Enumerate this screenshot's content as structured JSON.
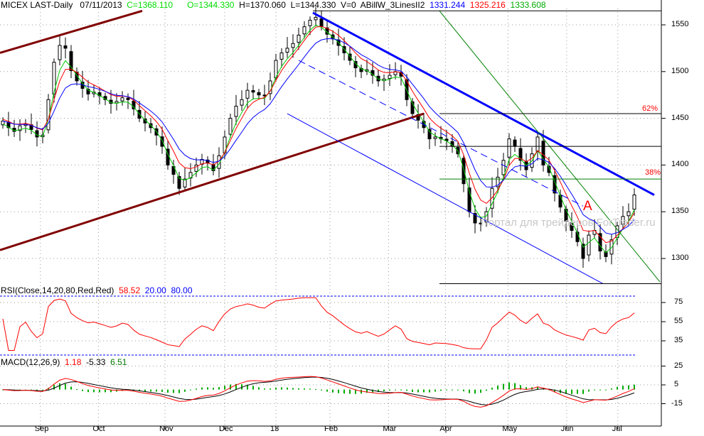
{
  "header": {
    "symbol": "MICEX LAST-Daily",
    "date": "07/11/2013",
    "close": "C=1368.110",
    "open": "O=1344.330",
    "high": "H=1370.060",
    "low": "L=1344.330",
    "volume": "V=0",
    "indicator": "ABillW_3LinesII2",
    "ind_values": [
      "1331.244",
      "1325.216",
      "1333.608"
    ]
  },
  "rsi_header": {
    "label": "RSI(Close,14,20,80,Red,Red)",
    "value": "58.52",
    "low": "20.00",
    "high": "80.00"
  },
  "macd_header": {
    "label": "MACD(12,26,9)",
    "macd": "1.18",
    "signal": "-5.33",
    "hist": "6.51"
  },
  "watermark": "Портал для трейдеров ForTrader.ru",
  "annotations": {
    "fib62": "62%",
    "fib38": "38%",
    "wave": "A"
  },
  "colors": {
    "green": "#00cc00",
    "red": "#ff0000",
    "blue": "#0000ff",
    "brown": "#800000",
    "axis": "#000000"
  },
  "chart_data": {
    "type": "candlestick",
    "x_ticks": [
      "Sep",
      "Oct",
      "Nov",
      "Dec",
      "13",
      "Feb",
      "Mar",
      "Apr",
      "May",
      "Jun",
      "Jul"
    ],
    "x_tick_index": [
      6.6,
      16.8,
      28.5,
      39,
      48,
      57.5,
      67.8,
      77.8,
      88.8,
      99.1,
      108.1
    ],
    "price_ticks": [
      1300,
      1350,
      1400,
      1450,
      1500,
      1550
    ],
    "price_labels": [
      "1300",
      "1350",
      "1400",
      "1450",
      "1500",
      "1550"
    ],
    "price_range": [
      1262,
      1575
    ],
    "closes": [
      1447,
      1440,
      1436,
      1442,
      1444,
      1438,
      1430,
      1432,
      1470,
      1510,
      1528,
      1525,
      1501,
      1490,
      1482,
      1476,
      1478,
      1474,
      1470,
      1466,
      1468,
      1472,
      1470,
      1460,
      1450,
      1445,
      1440,
      1432,
      1420,
      1400,
      1390,
      1375,
      1385,
      1392,
      1400,
      1406,
      1402,
      1394,
      1410,
      1430,
      1450,
      1463,
      1470,
      1480,
      1478,
      1475,
      1474,
      1490,
      1512,
      1520,
      1525,
      1530,
      1539,
      1548,
      1555,
      1558,
      1548,
      1540,
      1535,
      1528,
      1520,
      1512,
      1504,
      1500,
      1502,
      1496,
      1490,
      1492,
      1496,
      1500,
      1495,
      1470,
      1455,
      1448,
      1440,
      1428,
      1430,
      1428,
      1426,
      1420,
      1412,
      1380,
      1350,
      1338,
      1337,
      1350,
      1375,
      1387,
      1405,
      1428,
      1420,
      1405,
      1395,
      1412,
      1430,
      1400,
      1392,
      1370,
      1355,
      1340,
      1330,
      1318,
      1300,
      1325,
      1330,
      1308,
      1302,
      1320,
      1335,
      1345,
      1350,
      1368
    ],
    "rsi_ticks": [
      35,
      55,
      75
    ],
    "rsi_labels": [
      "35",
      "55",
      "75"
    ],
    "rsi_levels": [
      20,
      80
    ],
    "macd_ticks": [
      -15,
      5,
      25
    ],
    "macd_labels": [
      "-15",
      "5",
      "25"
    ],
    "trendlines": [
      {
        "name": "brown-channel-lower",
        "color": "#800000",
        "width": 3,
        "from": [
          -0.5,
          1309
        ],
        "to": [
          74,
          1455
        ]
      },
      {
        "name": "brown-channel-upper",
        "color": "#800000",
        "width": 3,
        "from": [
          -0.5,
          1520
        ],
        "to": [
          24.5,
          1565
        ]
      },
      {
        "name": "blue-resistance",
        "color": "#0000ff",
        "width": 3,
        "from": [
          54.5,
          1563
        ],
        "to": [
          114.5,
          1368
        ]
      },
      {
        "name": "blue-dashed-mid",
        "color": "#0000ff",
        "width": 1,
        "dash": true,
        "from": [
          52,
          1512
        ],
        "to": [
          102,
          1356
        ]
      },
      {
        "name": "blue-channel-lower",
        "color": "#0000ff",
        "width": 1,
        "from": [
          50,
          1455
        ],
        "to": [
          105.5,
          1273
        ]
      },
      {
        "name": "green-fan",
        "color": "#008000",
        "width": 1,
        "from": [
          76.75,
          1565
        ],
        "to": [
          115.5,
          1275
        ]
      },
      {
        "name": "hline-top",
        "color": "#000000",
        "width": 1,
        "from": [
          54.5,
          1565
        ],
        "to": [
          115.75,
          1565
        ]
      },
      {
        "name": "hline-62",
        "color": "#000000",
        "width": 1,
        "from": [
          76.75,
          1455
        ],
        "to": [
          115.75,
          1455
        ]
      },
      {
        "name": "hline-1420",
        "color": "#000000",
        "width": 1,
        "from": [
          76.75,
          1420
        ],
        "to": [
          115.75,
          1420
        ]
      },
      {
        "name": "hline-38",
        "color": "#008000",
        "width": 1,
        "from": [
          76.75,
          1385
        ],
        "to": [
          115.75,
          1385
        ]
      },
      {
        "name": "hline-bottom",
        "color": "#000000",
        "width": 1,
        "from": [
          76.75,
          1273
        ],
        "to": [
          115.75,
          1273
        ]
      }
    ]
  }
}
